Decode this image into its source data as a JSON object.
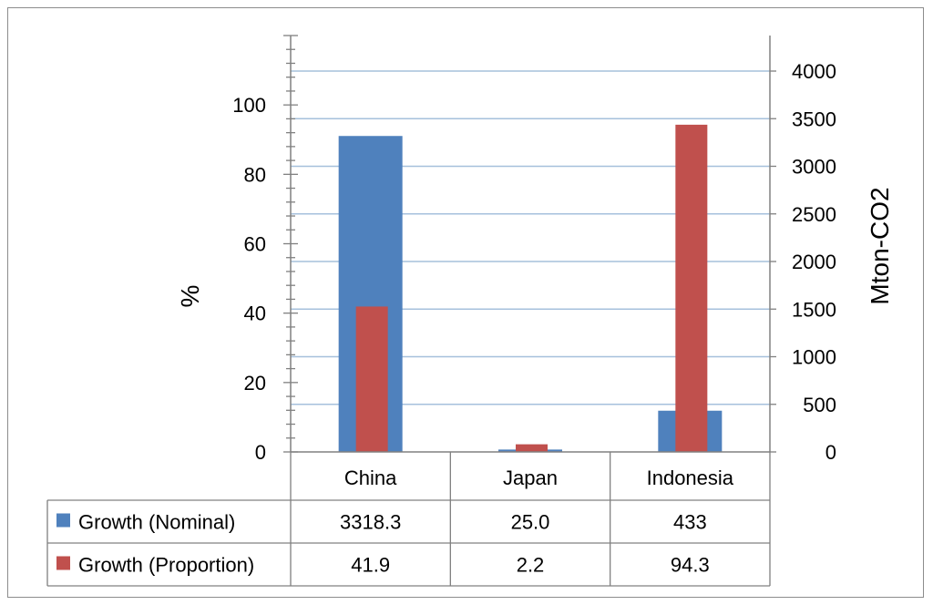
{
  "chart_data": {
    "type": "bar",
    "categories": [
      "China",
      "Japan",
      "Indonesia"
    ],
    "series": [
      {
        "name": "Growth (Nominal)",
        "axis": "right",
        "color": "#4f81bd",
        "values": [
          3318.3,
          25.0,
          433
        ],
        "labels": [
          "3318.3",
          "25.0",
          "433"
        ]
      },
      {
        "name": "Growth (Proportion)",
        "axis": "left",
        "color": "#c0504d",
        "values": [
          41.9,
          2.2,
          94.3
        ],
        "labels": [
          "41.9",
          "2.2",
          "94.3"
        ]
      }
    ],
    "y_left": {
      "label": "%",
      "min": 0,
      "max": 120,
      "ticks": [
        0,
        20,
        40,
        60,
        80,
        100
      ]
    },
    "y_right": {
      "label": "Mton-CO2",
      "min": 0,
      "max": 4000,
      "ticks": [
        0,
        500,
        1000,
        1500,
        2000,
        2500,
        3000,
        3500,
        4000
      ]
    },
    "gridlines": true,
    "legend": "data-table"
  }
}
